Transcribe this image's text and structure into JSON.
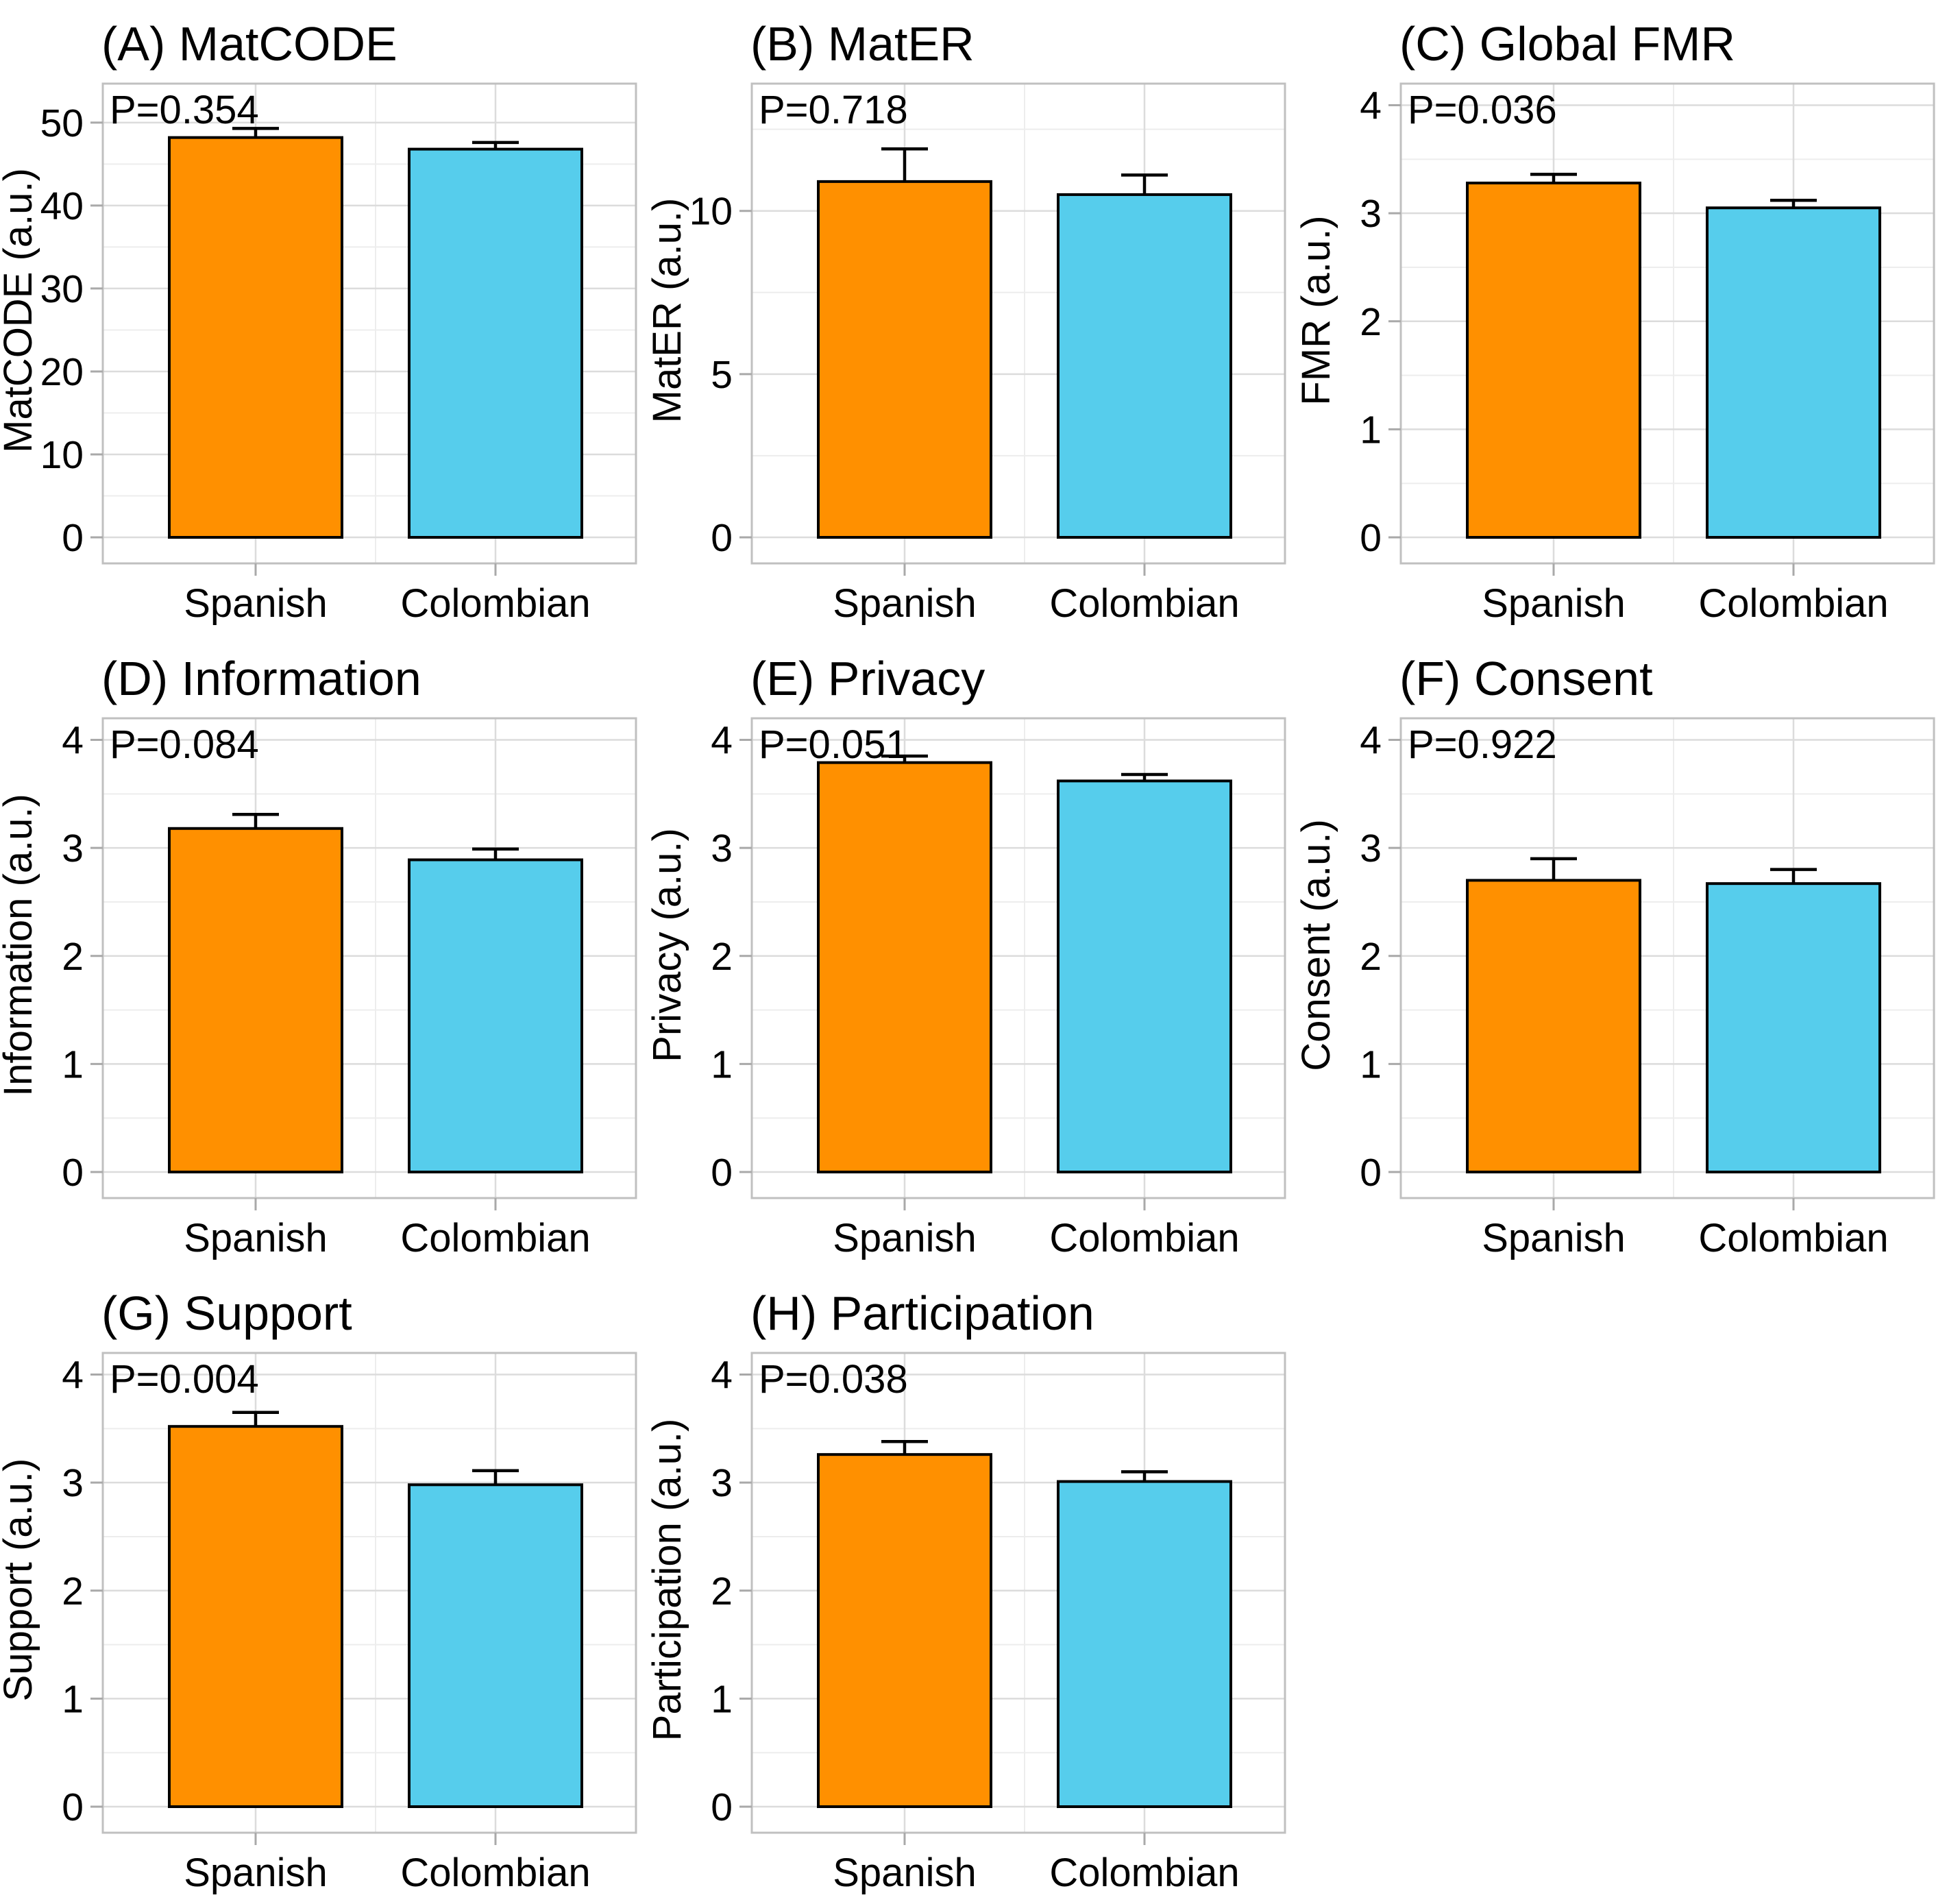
{
  "figure": {
    "categories": [
      "Spanish",
      "Colombian"
    ],
    "colors": {
      "spanish_bar": "#FF9000",
      "colombian_bar": "#56CDEC",
      "bar_outline": "#000000",
      "error_bar": "#000000",
      "major_gridline": "#DCDCDC",
      "minor_gridline": "#EDEDED",
      "panel_border": "#C0C0C0",
      "tick_mark": "#A9A9A9",
      "text": "#000000",
      "background": "#FFFFFF"
    },
    "layout": {
      "grid_columns": 3,
      "grid_rows": 3,
      "filled_cells": 8,
      "legend": "none",
      "grid_on": true
    }
  },
  "chart_data": [
    {
      "type": "bar",
      "panel": "A",
      "title": "(A) MatCODE",
      "annotation": "P=0.354",
      "ylabel": "MatCODE (a.u.)",
      "categories": [
        "Spanish",
        "Colombian"
      ],
      "values": [
        48.2,
        46.8
      ],
      "errors_up": [
        1.1,
        0.8
      ],
      "yticks": [
        0,
        10,
        20,
        30,
        40,
        50
      ],
      "ylim": [
        0,
        54.7
      ],
      "minor_step": 5
    },
    {
      "type": "bar",
      "panel": "B",
      "title": "(B) MatER",
      "annotation": "P=0.718",
      "ylabel": "MatER (a.u.)",
      "categories": [
        "Spanish",
        "Colombian"
      ],
      "values": [
        10.9,
        10.5
      ],
      "errors_up": [
        1.0,
        0.6
      ],
      "yticks": [
        0,
        5,
        10
      ],
      "ylim": [
        0,
        13.9
      ],
      "minor_step": 2.5
    },
    {
      "type": "bar",
      "panel": "C",
      "title": "(C) Global FMR",
      "annotation": "P=0.036",
      "ylabel": "FMR (a.u.)",
      "categories": [
        "Spanish",
        "Colombian"
      ],
      "values": [
        3.28,
        3.05
      ],
      "errors_up": [
        0.08,
        0.07
      ],
      "yticks": [
        0,
        1,
        2,
        3,
        4
      ],
      "ylim": [
        0,
        4.2
      ],
      "minor_step": 0.5
    },
    {
      "type": "bar",
      "panel": "D",
      "title": "(D) Information",
      "annotation": "P=0.084",
      "ylabel": "Information (a.u.)",
      "categories": [
        "Spanish",
        "Colombian"
      ],
      "values": [
        3.18,
        2.89
      ],
      "errors_up": [
        0.13,
        0.1
      ],
      "yticks": [
        0,
        1,
        2,
        3,
        4
      ],
      "ylim": [
        0,
        4.2
      ],
      "minor_step": 0.5
    },
    {
      "type": "bar",
      "panel": "E",
      "title": "(E) Privacy",
      "annotation": "P=0.051",
      "ylabel": "Privacy (a.u.)",
      "categories": [
        "Spanish",
        "Colombian"
      ],
      "values": [
        3.79,
        3.62
      ],
      "errors_up": [
        0.06,
        0.06
      ],
      "yticks": [
        0,
        1,
        2,
        3,
        4
      ],
      "ylim": [
        0,
        4.2
      ],
      "minor_step": 0.5
    },
    {
      "type": "bar",
      "panel": "F",
      "title": "(F) Consent",
      "annotation": "P=0.922",
      "ylabel": "Consent (a.u.)",
      "categories": [
        "Spanish",
        "Colombian"
      ],
      "values": [
        2.7,
        2.67
      ],
      "errors_up": [
        0.2,
        0.13
      ],
      "yticks": [
        0,
        1,
        2,
        3,
        4
      ],
      "ylim": [
        0,
        4.2
      ],
      "minor_step": 0.5
    },
    {
      "type": "bar",
      "panel": "G",
      "title": "(G) Support",
      "annotation": "P=0.004",
      "ylabel": "Support (a.u.)",
      "categories": [
        "Spanish",
        "Colombian"
      ],
      "values": [
        3.52,
        2.98
      ],
      "errors_up": [
        0.13,
        0.13
      ],
      "yticks": [
        0,
        1,
        2,
        3,
        4
      ],
      "ylim": [
        0,
        4.2
      ],
      "minor_step": 0.5
    },
    {
      "type": "bar",
      "panel": "H",
      "title": "(H) Participation",
      "annotation": "P=0.038",
      "ylabel": "Participation (a.u.)",
      "categories": [
        "Spanish",
        "Colombian"
      ],
      "values": [
        3.26,
        3.01
      ],
      "errors_up": [
        0.12,
        0.09
      ],
      "yticks": [
        0,
        1,
        2,
        3,
        4
      ],
      "ylim": [
        0,
        4.2
      ],
      "minor_step": 0.5
    }
  ]
}
